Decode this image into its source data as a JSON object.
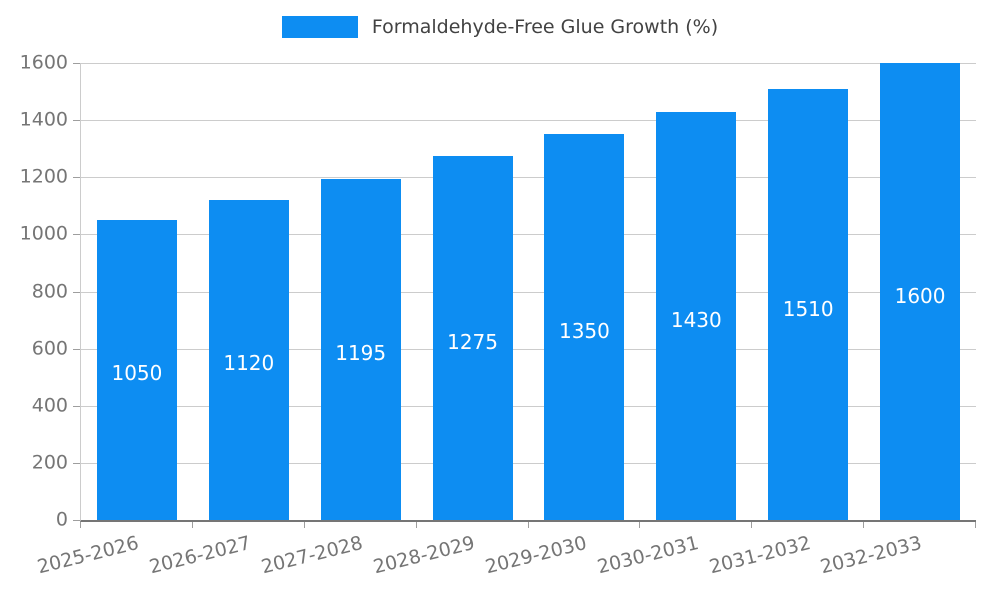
{
  "chart_data": {
    "type": "bar",
    "title": "Formaldehyde-Free Glue Growth (%)",
    "categories": [
      "2025-2026",
      "2026-2027",
      "2027-2028",
      "2028-2029",
      "2029-2030",
      "2030-2031",
      "2031-2032",
      "2032-2033"
    ],
    "values": [
      1050,
      1120,
      1195,
      1275,
      1350,
      1430,
      1510,
      1600
    ],
    "xlabel": "",
    "ylabel": "",
    "ylim": [
      0,
      1600
    ],
    "ytick_step": 200,
    "yticks": [
      0,
      200,
      400,
      600,
      800,
      1000,
      1200,
      1400,
      1600
    ],
    "grid": true,
    "legend_position": "top",
    "bar_color": "#0d8df2",
    "gridline_color": "#cccccc",
    "tick_label_color": "#757575",
    "value_label_color": "#ffffff"
  }
}
